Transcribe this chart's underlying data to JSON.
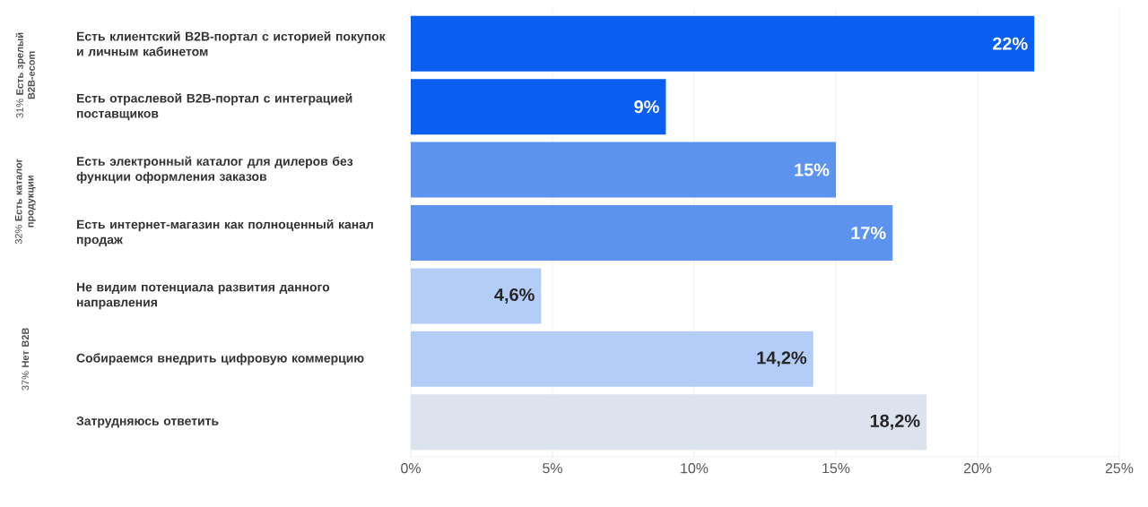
{
  "chart_data": {
    "type": "bar",
    "orientation": "horizontal",
    "categories": [
      "Есть клиентский B2B-портал с историей покупок и личным кабинетом",
      "Есть отраслевой B2B-портал с интеграцией поставщиков",
      "Есть электронный каталог для дилеров без функции оформления заказов",
      "Есть интернет-магазин как полноценный канал продаж",
      "Не видим потенциала развития данного направления",
      "Собираемся внедрить цифровую коммерцию",
      "Затрудняюсь ответить"
    ],
    "values": [
      22,
      9,
      15,
      17,
      4.6,
      14.2,
      18.2
    ],
    "value_labels": [
      "22%",
      "9%",
      "15%",
      "17%",
      "4,6%",
      "14,2%",
      "18,2%"
    ],
    "colors": [
      "#0a5ef0",
      "#0a5ef0",
      "#5b93ef",
      "#5b93ef",
      "#b3cdf7",
      "#b3cdf7",
      "#dde3ee"
    ],
    "xlim": [
      0,
      25
    ],
    "xticks": [
      {
        "value": 0,
        "label": "0%"
      },
      {
        "value": 5,
        "label": "5%"
      },
      {
        "value": 10,
        "label": "10%"
      },
      {
        "value": 15,
        "label": "15%"
      },
      {
        "value": 20,
        "label": "20%"
      },
      {
        "value": 25,
        "label": "25%"
      }
    ],
    "grid": "x",
    "annotations": [
      "31% **Есть зрелый B2B-ecom**",
      "32% **Есть каталог продукции**",
      "37% **Нет B2B**"
    ]
  }
}
